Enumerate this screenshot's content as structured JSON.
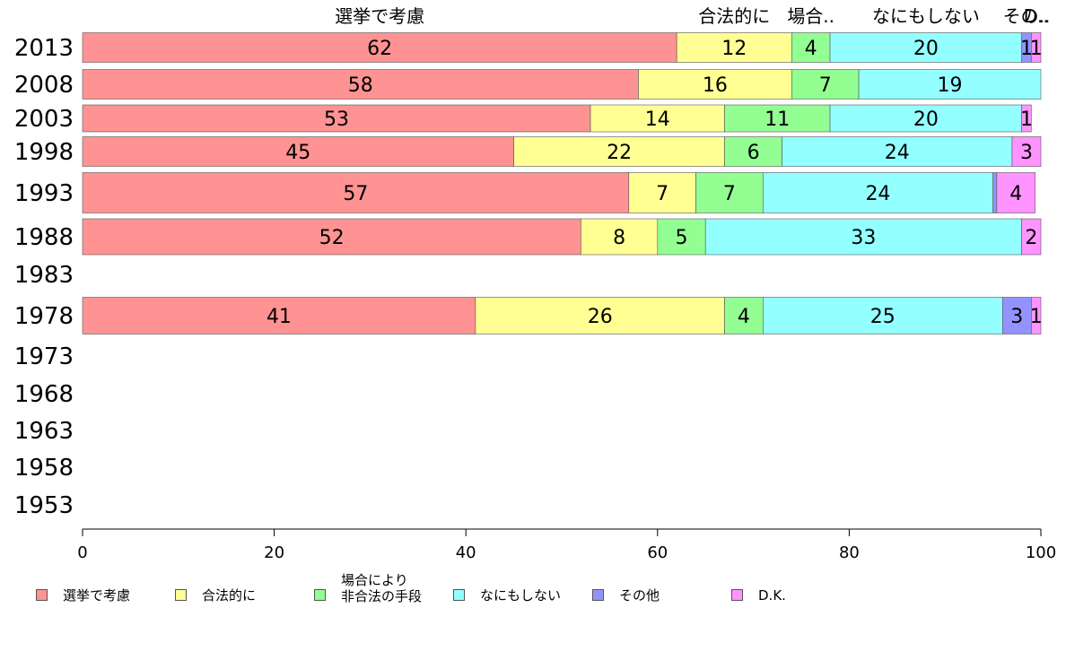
{
  "chart_data": {
    "type": "bar",
    "orientation": "horizontal",
    "stacked": true,
    "categories": [
      "2013",
      "2008",
      "2003",
      "1998",
      "1993",
      "1988",
      "1983",
      "1978",
      "1973",
      "1968",
      "1963",
      "1958",
      "1953"
    ],
    "series": [
      {
        "name": "選挙で考慮",
        "top_label": "選挙で考慮",
        "color": "#ff9393",
        "values": [
          62,
          58,
          53,
          45,
          57,
          52,
          null,
          41,
          null,
          null,
          null,
          null,
          null
        ]
      },
      {
        "name": "合法的に",
        "top_label": "合法的に",
        "color": "#ffff93",
        "values": [
          12,
          16,
          14,
          22,
          7,
          8,
          null,
          26,
          null,
          null,
          null,
          null,
          null
        ]
      },
      {
        "name": "場合により\n非合法の手段",
        "top_label": "場合..",
        "color": "#93ff93",
        "values": [
          4,
          7,
          11,
          6,
          7,
          5,
          null,
          4,
          null,
          null,
          null,
          null,
          null
        ]
      },
      {
        "name": "なにもしない",
        "top_label": "なにもしない",
        "color": "#93ffff",
        "values": [
          20,
          19,
          20,
          24,
          24,
          33,
          null,
          25,
          null,
          null,
          null,
          null,
          null
        ]
      },
      {
        "name": "その他",
        "top_label": "その..",
        "color": "#9393ff",
        "values": [
          1,
          0,
          0,
          0,
          0.4,
          0,
          null,
          3,
          null,
          null,
          null,
          null,
          null
        ]
      },
      {
        "name": "D.K.",
        "top_label": "D..",
        "color": "#ff93ff",
        "values": [
          1,
          0,
          1,
          3,
          4,
          2,
          null,
          1,
          null,
          null,
          null,
          null,
          null
        ]
      }
    ],
    "data_labels": [
      [
        "62",
        "12",
        "4",
        "20",
        "1",
        "1"
      ],
      [
        "58",
        "16",
        "7",
        "19",
        "",
        ""
      ],
      [
        "53",
        "14",
        "11",
        "20",
        "",
        "1"
      ],
      [
        "45",
        "22",
        "6",
        "24",
        "",
        "3"
      ],
      [
        "57",
        "7",
        "7",
        "24",
        "",
        "4"
      ],
      [
        "52",
        "8",
        "5",
        "33",
        "",
        "2"
      ],
      [
        "",
        "",
        "",
        "",
        "",
        ""
      ],
      [
        "41",
        "26",
        "4",
        "25",
        "3",
        "1"
      ],
      [
        "",
        "",
        "",
        "",
        "",
        ""
      ],
      [
        "",
        "",
        "",
        "",
        "",
        ""
      ],
      [
        "",
        "",
        "",
        "",
        "",
        ""
      ],
      [
        "",
        "",
        "",
        "",
        "",
        ""
      ],
      [
        "",
        "",
        "",
        "",
        "",
        ""
      ]
    ],
    "xlim": [
      0,
      100
    ],
    "xticks": [
      "0",
      "20",
      "40",
      "60",
      "80",
      "100"
    ],
    "xlabel": "",
    "ylabel": "",
    "title": "",
    "grid": false,
    "legend_position": "bottom"
  }
}
